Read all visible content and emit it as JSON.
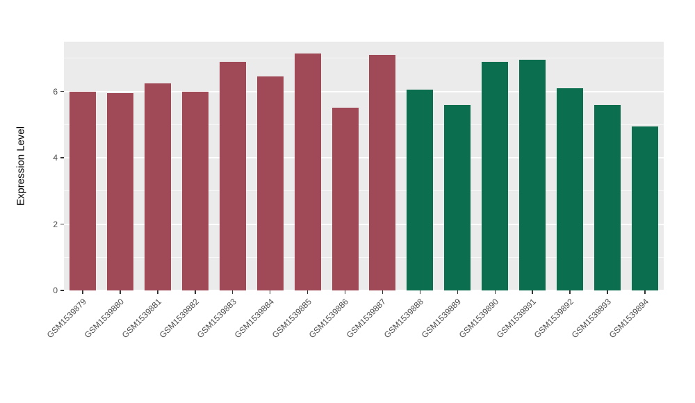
{
  "figure": {
    "background": "#FFFFFF",
    "panel_background": "#EBEBEB",
    "grid_color": "#FFFFFF",
    "tick_color": "#333333",
    "axis_text_color": "#4D4D4D"
  },
  "chart_data": {
    "type": "bar",
    "title": "",
    "xlabel": "",
    "ylabel": "Expression Level",
    "categories": [
      "GSM1539879",
      "GSM1539880",
      "GSM1539881",
      "GSM1539882",
      "GSM1539883",
      "GSM1539884",
      "GSM1539885",
      "GSM1539886",
      "GSM1539887",
      "GSM1539888",
      "GSM1539889",
      "GSM1539890",
      "GSM1539891",
      "GSM1539892",
      "GSM1539893",
      "GSM1539894"
    ],
    "values": [
      6.0,
      5.95,
      6.25,
      6.0,
      6.9,
      6.45,
      7.15,
      5.5,
      7.1,
      6.05,
      5.6,
      6.9,
      6.95,
      6.1,
      5.6,
      4.95
    ],
    "groups": [
      "red",
      "red",
      "red",
      "red",
      "red",
      "red",
      "red",
      "red",
      "red",
      "green",
      "green",
      "green",
      "green",
      "green",
      "green",
      "green"
    ],
    "group_colors": {
      "red": "#A04A58",
      "green": "#0B6E4F"
    },
    "y_ticks": [
      0,
      2,
      4,
      6
    ],
    "y_minor_ticks": [
      1,
      3,
      5,
      7
    ],
    "ylim": [
      0,
      7.5
    ],
    "grid": true,
    "legend": "none"
  }
}
